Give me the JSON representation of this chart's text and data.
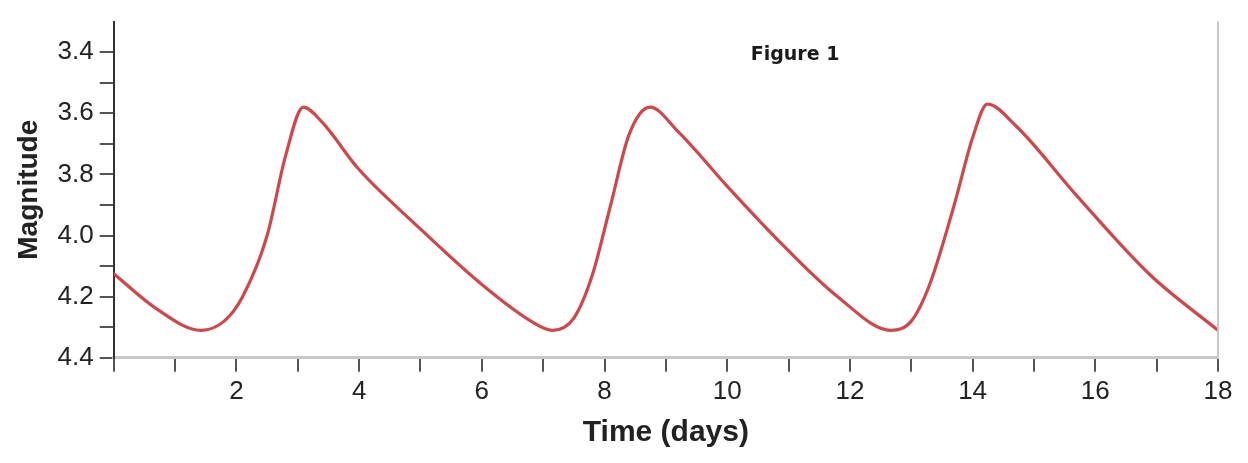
{
  "chart_data": {
    "type": "line",
    "title": "Figure 1",
    "xlabel": "Time (days)",
    "ylabel": "Magnitude",
    "xlim": [
      0,
      18
    ],
    "ylim": [
      4.4,
      3.3
    ],
    "xticks": [
      {
        "value": 0,
        "label": null
      },
      {
        "value": 1,
        "label": null
      },
      2,
      {
        "value": 3,
        "label": null
      },
      4,
      {
        "value": 5,
        "label": null
      },
      6,
      {
        "value": 7,
        "label": null
      },
      8,
      {
        "value": 9,
        "label": null
      },
      10,
      {
        "value": 11,
        "label": null
      },
      12,
      {
        "value": 13,
        "label": null
      },
      14,
      {
        "value": 15,
        "label": null
      },
      16,
      {
        "value": 17,
        "label": null
      },
      18
    ],
    "yticks": [
      {
        "value": 3.4,
        "label": "3.4"
      },
      {
        "value": 3.5,
        "label": null
      },
      {
        "value": 3.6,
        "label": "3.6"
      },
      {
        "value": 3.7,
        "label": null
      },
      {
        "value": 3.8,
        "label": "3.8"
      },
      {
        "value": 3.9,
        "label": null
      },
      {
        "value": 4.0,
        "label": "4.0"
      },
      {
        "value": 4.1,
        "label": null
      },
      {
        "value": 4.2,
        "label": "4.2"
      },
      {
        "value": 4.3,
        "label": null
      },
      {
        "value": 4.4,
        "label": "4.4"
      }
    ],
    "grid": false,
    "legend": false,
    "marker": "none",
    "line_style": "solid",
    "series": [
      {
        "color": "#d0474a",
        "x": [
          0,
          0.7,
          1.42,
          1.8,
          2.1,
          2.5,
          2.8,
          3.09,
          3.4,
          3.98,
          4.9,
          6.0,
          6.8,
          7.15,
          7.5,
          7.8,
          8.1,
          8.4,
          8.74,
          9.2,
          10.05,
          10.9,
          11.8,
          12.67,
          13.0,
          13.3,
          13.7,
          14.0,
          14.24,
          14.7,
          15.7,
          16.9,
          18
        ],
        "values": [
          4.125,
          4.24,
          4.31,
          4.28,
          4.2,
          4.0,
          3.74,
          3.58,
          3.63,
          3.78,
          3.96,
          4.16,
          4.28,
          4.31,
          4.27,
          4.13,
          3.9,
          3.67,
          3.58,
          3.66,
          3.85,
          4.03,
          4.2,
          4.31,
          4.28,
          4.16,
          3.9,
          3.68,
          3.57,
          3.64,
          3.87,
          4.13,
          4.31
        ]
      }
    ]
  }
}
